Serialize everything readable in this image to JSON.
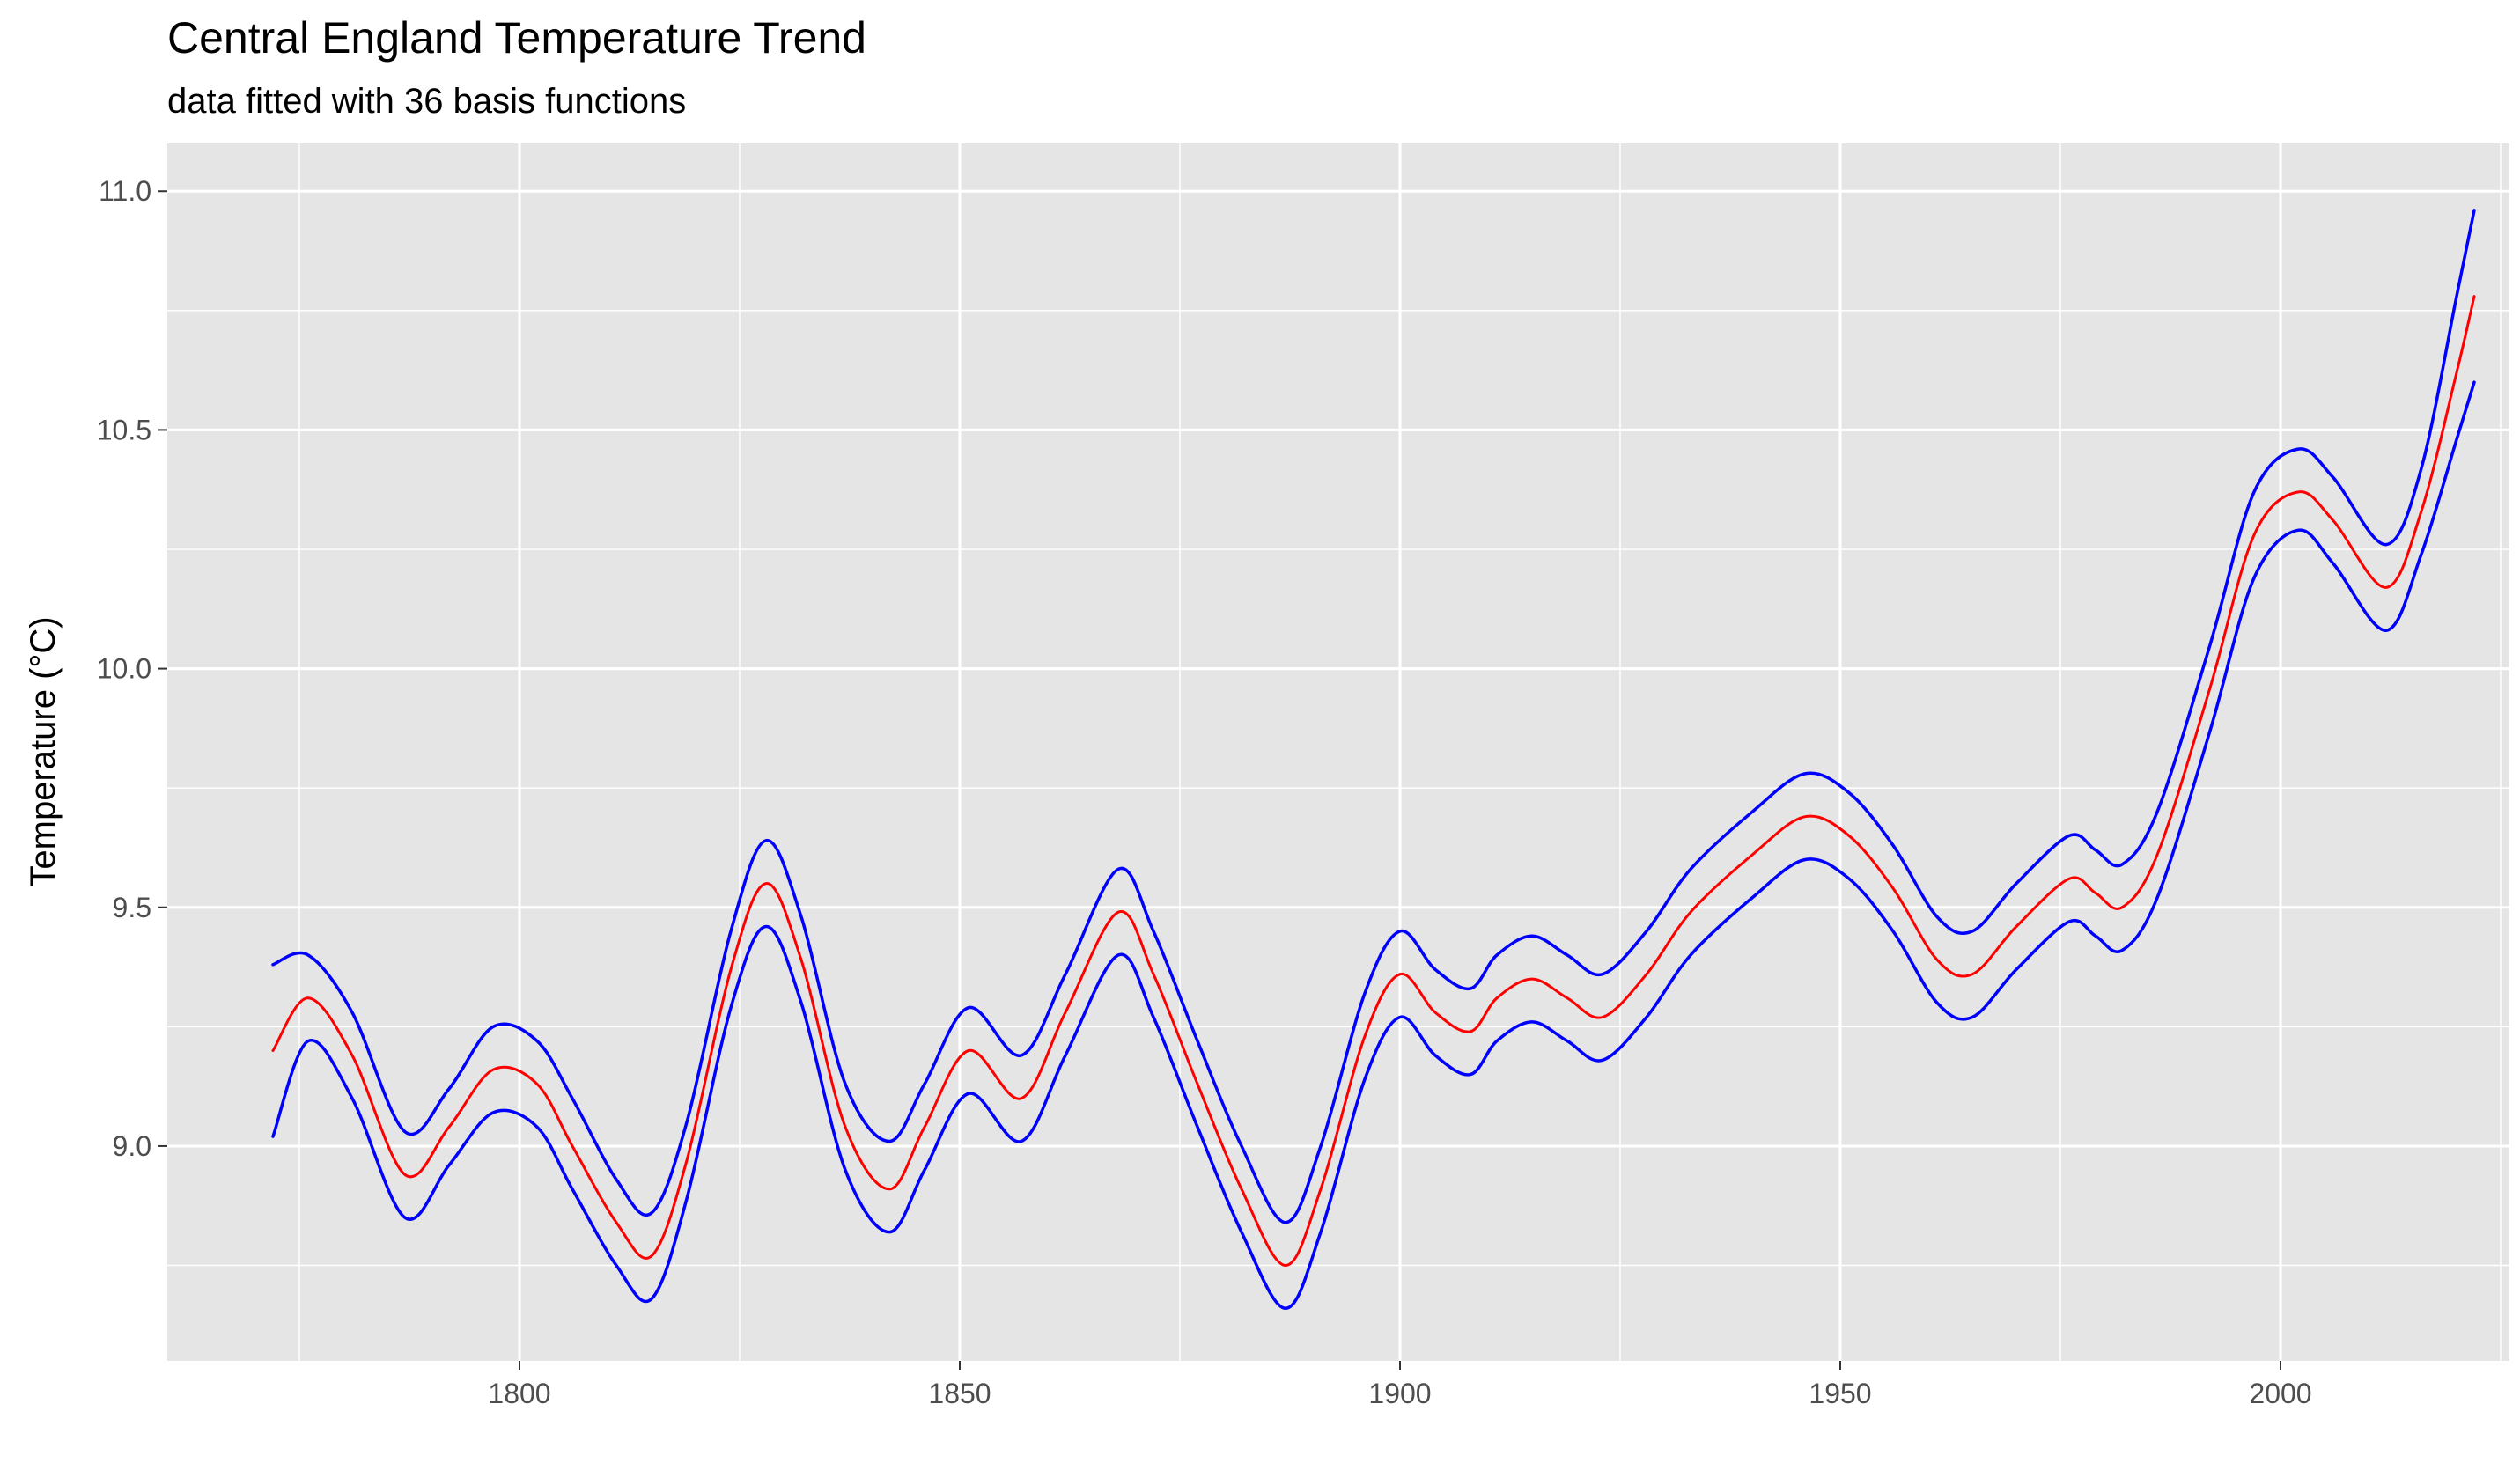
{
  "chart_data": {
    "type": "line",
    "title": "Central England Temperature Trend",
    "subtitle": "data fitted with 36 basis functions",
    "xlabel": "",
    "ylabel": "Temperature (°C)",
    "xlim": [
      1760,
      2026
    ],
    "ylim": [
      8.55,
      11.1
    ],
    "x_ticks": [
      "1800",
      "1850",
      "1900",
      "1950",
      "2000"
    ],
    "y_ticks": [
      "9.0",
      "9.5",
      "10.0",
      "10.5",
      "11.0"
    ],
    "grid": true,
    "background": "#e5e5e5",
    "colors": {
      "fit": "#ff0000",
      "band": "#0000ff"
    },
    "x": [
      1772,
      1776,
      1781,
      1787,
      1792,
      1797,
      1802,
      1806,
      1811,
      1815,
      1819,
      1824,
      1828,
      1832,
      1837,
      1842,
      1846,
      1851,
      1857,
      1862,
      1868,
      1872,
      1877,
      1882,
      1887,
      1891,
      1896,
      1900,
      1904,
      1908,
      1911,
      1915,
      1919,
      1923,
      1928,
      1933,
      1940,
      1946,
      1951,
      1956,
      1961,
      1965,
      1970,
      1976,
      1979,
      1982,
      1986,
      1992,
      1997,
      2002,
      2006,
      2012,
      2016,
      2020,
      2022
    ],
    "series": [
      {
        "role": "upper",
        "values": [
          9.38,
          9.4,
          9.28,
          9.03,
          9.12,
          9.25,
          9.22,
          9.1,
          8.93,
          8.86,
          9.05,
          9.45,
          9.64,
          9.48,
          9.13,
          9.01,
          9.13,
          9.29,
          9.19,
          9.36,
          9.58,
          9.45,
          9.22,
          9.0,
          8.84,
          9.0,
          9.32,
          9.45,
          9.37,
          9.33,
          9.4,
          9.44,
          9.4,
          9.36,
          9.45,
          9.58,
          9.7,
          9.78,
          9.74,
          9.63,
          9.48,
          9.45,
          9.55,
          9.65,
          9.62,
          9.59,
          9.7,
          10.05,
          10.37,
          10.46,
          10.4,
          10.26,
          10.42,
          10.78,
          10.96
        ]
      },
      {
        "role": "fit",
        "values": [
          9.2,
          9.31,
          9.19,
          8.94,
          9.04,
          9.16,
          9.13,
          9.0,
          8.84,
          8.77,
          8.97,
          9.37,
          9.55,
          9.39,
          9.04,
          8.91,
          9.04,
          9.2,
          9.1,
          9.28,
          9.49,
          9.36,
          9.13,
          8.91,
          8.75,
          8.91,
          9.23,
          9.36,
          9.28,
          9.24,
          9.31,
          9.35,
          9.31,
          9.27,
          9.36,
          9.49,
          9.61,
          9.69,
          9.65,
          9.54,
          9.39,
          9.36,
          9.46,
          9.56,
          9.53,
          9.5,
          9.61,
          9.96,
          10.28,
          10.37,
          10.31,
          10.17,
          10.33,
          10.62,
          10.78
        ]
      },
      {
        "role": "lower",
        "values": [
          9.02,
          9.22,
          9.1,
          8.85,
          8.96,
          9.07,
          9.04,
          8.91,
          8.75,
          8.68,
          8.89,
          9.29,
          9.46,
          9.3,
          8.95,
          8.82,
          8.95,
          9.11,
          9.01,
          9.19,
          9.4,
          9.27,
          9.04,
          8.82,
          8.66,
          8.82,
          9.14,
          9.27,
          9.19,
          9.15,
          9.22,
          9.26,
          9.22,
          9.18,
          9.27,
          9.4,
          9.52,
          9.6,
          9.56,
          9.45,
          9.3,
          9.27,
          9.37,
          9.47,
          9.44,
          9.41,
          9.52,
          9.87,
          10.19,
          10.29,
          10.22,
          10.08,
          10.24,
          10.48,
          10.6
        ]
      }
    ]
  }
}
